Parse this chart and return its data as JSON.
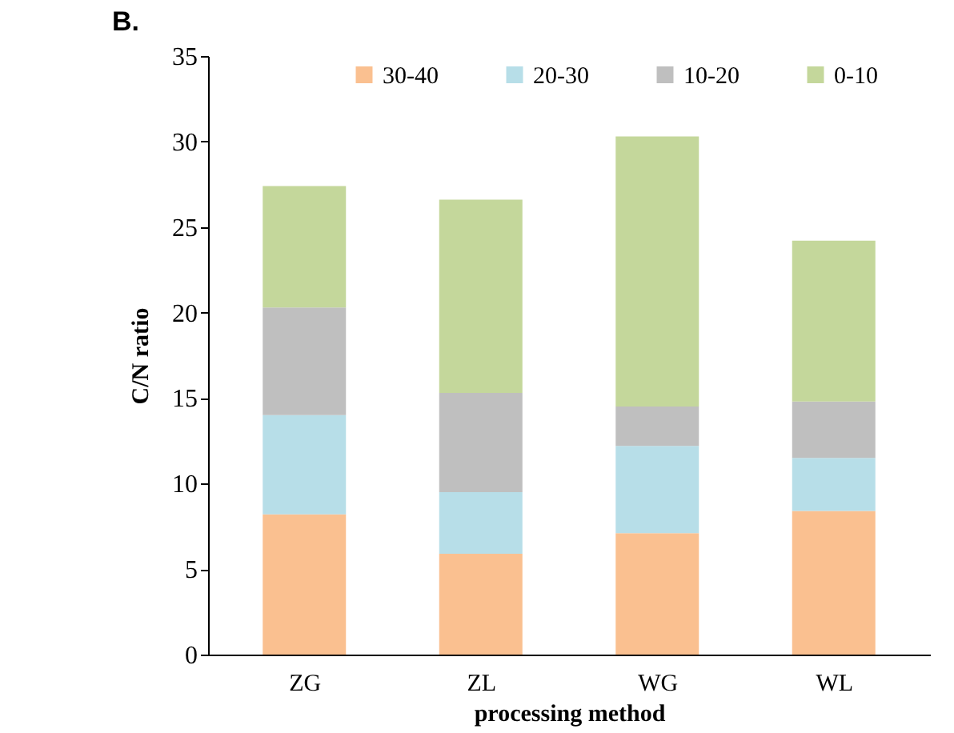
{
  "chart_data": {
    "type": "bar",
    "title": "B.",
    "xlabel": "processing method",
    "ylabel": "C/N ratio",
    "categories": [
      "ZG",
      "ZL",
      "WG",
      "WL"
    ],
    "stacked": true,
    "series": [
      {
        "name": "30-40",
        "color": "#fac090",
        "values": [
          8.2,
          5.9,
          7.1,
          8.4
        ]
      },
      {
        "name": "20-30",
        "color": "#b7dee8",
        "values": [
          5.8,
          3.6,
          5.1,
          3.1
        ]
      },
      {
        "name": "10-20",
        "color": "#bfbfbf",
        "values": [
          6.3,
          5.8,
          2.3,
          3.3
        ]
      },
      {
        "name": "0-10",
        "color": "#c4d79b",
        "values": [
          7.1,
          11.3,
          15.8,
          9.4
        ]
      }
    ],
    "ylim": [
      0,
      35
    ],
    "yticks": [
      0,
      5,
      10,
      15,
      20,
      25,
      30,
      35
    ],
    "grid": false,
    "legend": "top"
  }
}
